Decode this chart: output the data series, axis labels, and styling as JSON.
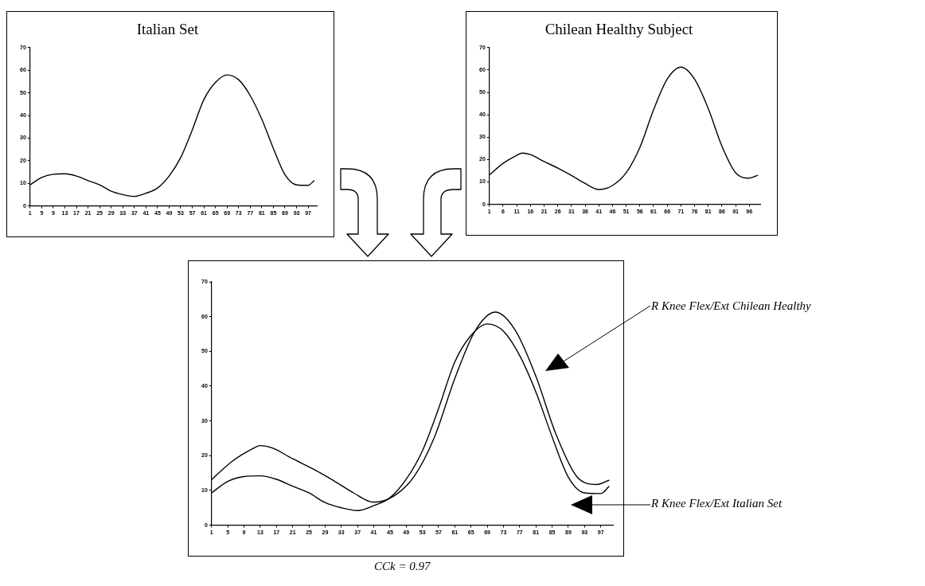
{
  "chart_data": [
    {
      "type": "line",
      "title": "Italian Set",
      "xlim": [
        1,
        100
      ],
      "xticks": [
        1,
        5,
        9,
        13,
        17,
        21,
        25,
        29,
        33,
        37,
        41,
        45,
        49,
        53,
        57,
        61,
        65,
        69,
        73,
        77,
        81,
        85,
        89,
        93,
        97
      ],
      "ylim": [
        0,
        70
      ],
      "yticks": [
        0,
        10,
        20,
        30,
        40,
        50,
        60,
        70
      ],
      "grid": false,
      "marker": "none",
      "line_style": "solid",
      "series": [
        {
          "color": "#000000",
          "x": [
            1,
            5,
            9,
            13,
            17,
            21,
            25,
            29,
            33,
            37,
            41,
            45,
            49,
            53,
            57,
            61,
            65,
            69,
            73,
            77,
            81,
            85,
            89,
            93,
            97,
            99
          ],
          "values": [
            9.3,
            12.6,
            14.0,
            14.2,
            13.2,
            11.2,
            9.3,
            6.5,
            5.0,
            4.2,
            5.6,
            7.9,
            13.2,
            21.4,
            33.6,
            47.0,
            54.6,
            57.9,
            55.8,
            48.8,
            38.3,
            25.4,
            13.8,
            9.3,
            9.1,
            11.1
          ]
        }
      ]
    },
    {
      "type": "line",
      "title": "Chilean Healthy Subject",
      "xlim": [
        1,
        100
      ],
      "xticks": [
        1,
        6,
        11,
        16,
        21,
        26,
        31,
        36,
        41,
        46,
        51,
        56,
        61,
        66,
        71,
        76,
        81,
        86,
        91,
        96
      ],
      "ylim": [
        0,
        70
      ],
      "yticks": [
        0,
        10,
        20,
        30,
        40,
        50,
        60,
        70
      ],
      "grid": false,
      "marker": "none",
      "line_style": "solid",
      "series": [
        {
          "color": "#000000",
          "x": [
            1,
            6,
            11,
            13,
            16,
            21,
            26,
            31,
            36,
            41,
            46,
            51,
            56,
            61,
            66,
            71,
            76,
            81,
            86,
            91,
            96,
            99
          ],
          "values": [
            13.1,
            18.3,
            21.9,
            22.9,
            22.2,
            19.1,
            16.2,
            12.9,
            9.3,
            6.6,
            8.4,
            14.1,
            25.4,
            42.2,
            55.9,
            61.3,
            55.9,
            42.8,
            26.0,
            14.1,
            11.7,
            12.9
          ]
        }
      ]
    },
    {
      "type": "line",
      "xlim": [
        1,
        100
      ],
      "xticks": [
        1,
        5,
        9,
        13,
        17,
        21,
        25,
        29,
        33,
        37,
        41,
        45,
        49,
        53,
        57,
        61,
        65,
        69,
        73,
        77,
        81,
        85,
        89,
        93,
        97
      ],
      "ylim": [
        0,
        70
      ],
      "yticks": [
        0,
        10,
        20,
        30,
        40,
        50,
        60,
        70
      ],
      "grid": false,
      "marker": "none",
      "line_style": "solid",
      "annotations": [
        "CCk = 0.97"
      ],
      "series": [
        {
          "name": "R Knee Flex/Ext Chilean Healthy",
          "color": "#000000",
          "x": [
            1,
            6,
            11,
            13,
            16,
            21,
            26,
            31,
            36,
            41,
            46,
            51,
            56,
            61,
            66,
            71,
            76,
            81,
            86,
            91,
            96,
            99
          ],
          "values": [
            13.1,
            18.3,
            21.9,
            22.9,
            22.2,
            19.1,
            16.2,
            12.9,
            9.3,
            6.6,
            8.4,
            14.1,
            25.4,
            42.2,
            55.9,
            61.3,
            55.9,
            42.8,
            26.0,
            14.1,
            11.7,
            12.9
          ]
        },
        {
          "name": "R Knee Flex/Ext Italian Set",
          "color": "#000000",
          "x": [
            1,
            5,
            9,
            13,
            17,
            21,
            25,
            29,
            33,
            37,
            41,
            45,
            49,
            53,
            57,
            61,
            65,
            69,
            73,
            77,
            81,
            85,
            89,
            93,
            97,
            99
          ],
          "values": [
            9.3,
            12.6,
            14.0,
            14.2,
            13.2,
            11.2,
            9.3,
            6.5,
            5.0,
            4.2,
            5.6,
            7.9,
            13.2,
            21.4,
            33.6,
            47.0,
            54.6,
            57.9,
            55.8,
            48.8,
            38.3,
            25.4,
            13.8,
            9.3,
            9.1,
            11.1
          ]
        }
      ]
    }
  ]
}
